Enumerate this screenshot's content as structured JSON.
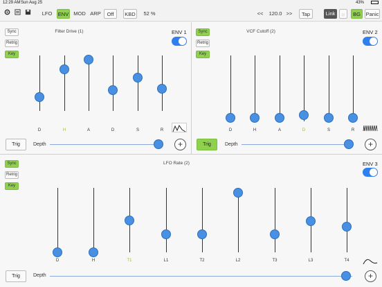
{
  "status": {
    "time": "12:29 AM",
    "date": "Sun Aug 25",
    "battery": "43%"
  },
  "toolbar": {
    "lfo": "LFO",
    "env": "ENV",
    "mod": "MOD",
    "arp": "ARP",
    "off": "Off",
    "kbd": "KBD",
    "percent": "52 %",
    "prev": "<<",
    "tempo": "120.0",
    "next": ">>",
    "tap": "Tap",
    "link": "Link",
    "bg": "BG",
    "panic": "Panic"
  },
  "env1": {
    "title": "Filter Drive (1)",
    "label": "ENV 1",
    "sync": "Sync",
    "retrig": "Retrig",
    "key": "Key",
    "trig": "Trig",
    "depth": "Depth",
    "sliders": [
      {
        "label": "D",
        "value": 0.25,
        "hl": false
      },
      {
        "label": "H",
        "value": 0.75,
        "hl": true
      },
      {
        "label": "A",
        "value": 0.93,
        "hl": false
      },
      {
        "label": "D",
        "value": 0.38,
        "hl": false
      },
      {
        "label": "S",
        "value": 0.6,
        "hl": false
      },
      {
        "label": "R",
        "value": 0.4,
        "hl": false
      }
    ],
    "depth_value": 0.97
  },
  "env2": {
    "title": "VCF Cutoff (2)",
    "label": "ENV 2",
    "sync": "Sync",
    "retrig": "Retrig",
    "key": "Key",
    "trig": "Trig",
    "depth": "Depth",
    "sliders": [
      {
        "label": "D",
        "value": 0.05,
        "hl": false
      },
      {
        "label": "H",
        "value": 0.05,
        "hl": false
      },
      {
        "label": "A",
        "value": 0.05,
        "hl": false
      },
      {
        "label": "D",
        "value": 0.1,
        "hl": true
      },
      {
        "label": "S",
        "value": 0.05,
        "hl": false
      },
      {
        "label": "R",
        "value": 0.05,
        "hl": false
      }
    ],
    "depth_value": 0.97
  },
  "env3": {
    "title": "LFO Rate (2)",
    "label": "ENV 3",
    "sync": "Sync",
    "retrig": "Retrig",
    "key": "Key",
    "trig": "Trig",
    "depth": "Depth",
    "sliders": [
      {
        "label": "D",
        "value": 0.0,
        "hl": false
      },
      {
        "label": "H",
        "value": 0.0,
        "hl": false
      },
      {
        "label": "T1",
        "value": 0.5,
        "hl": true
      },
      {
        "label": "L1",
        "value": 0.28,
        "hl": false
      },
      {
        "label": "T2",
        "value": 0.28,
        "hl": false
      },
      {
        "label": "L2",
        "value": 0.92,
        "hl": false
      },
      {
        "label": "T3",
        "value": 0.28,
        "hl": false
      },
      {
        "label": "L3",
        "value": 0.48,
        "hl": false
      },
      {
        "label": "T4",
        "value": 0.4,
        "hl": false
      }
    ],
    "depth_value": 0.98
  },
  "colors": {
    "accent": "#4a90e2",
    "on": "#8fd14f"
  }
}
